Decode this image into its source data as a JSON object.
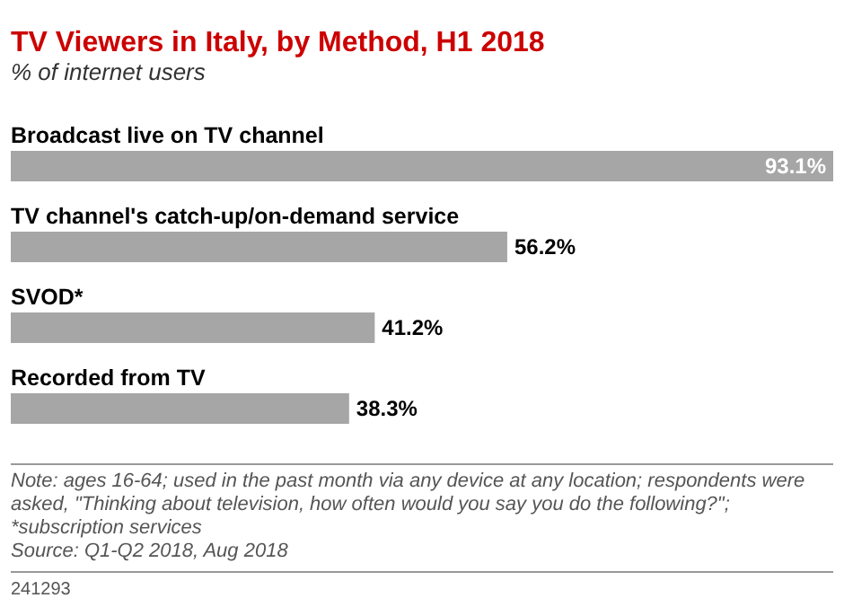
{
  "chart_data": {
    "type": "bar",
    "orientation": "horizontal",
    "title": "TV Viewers in Italy, by Method, H1 2018",
    "subtitle": "% of internet users",
    "categories": [
      "Broadcast live on TV channel",
      "TV channel's catch-up/on-demand service",
      "SVOD*",
      "Recorded from TV"
    ],
    "values": [
      93.1,
      56.2,
      41.2,
      38.3
    ],
    "value_labels": [
      "93.1%",
      "56.2%",
      "41.2%",
      "38.3%"
    ],
    "color": "#a6a6a6",
    "annotations": [
      "Note: ages 16-64; used in the past month via any device at any location; respondents were asked, \"Thinking about television, how often would you say you do the following?\"; *subscription services",
      "Source: Q1-Q2 2018, Aug 2018",
      "241293"
    ]
  }
}
